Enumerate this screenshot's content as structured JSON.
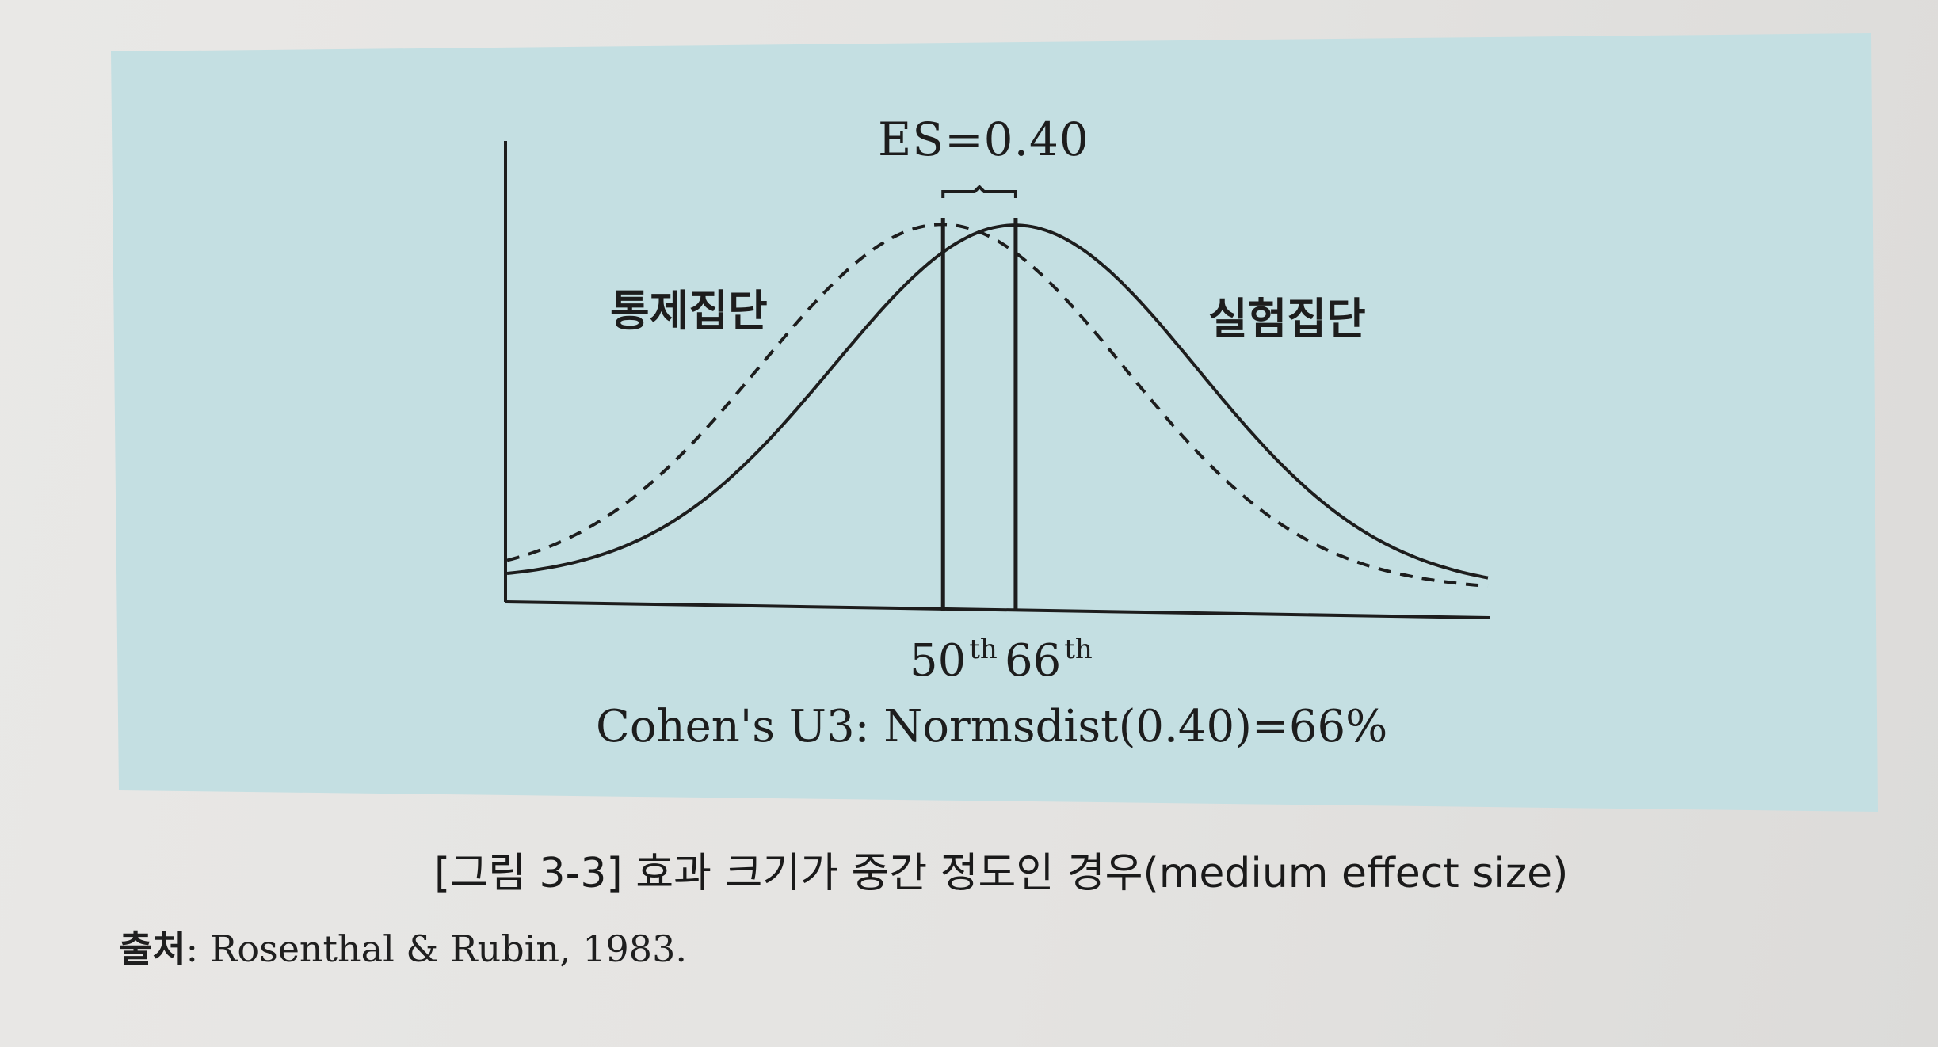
{
  "figure": {
    "es_label": "ES=0.40",
    "control_group_label": "통제집단",
    "treatment_group_label": "실험집단",
    "percentile_50": "50",
    "percentile_66": "66",
    "percentile_suffix": "th",
    "formula": "Cohen's U3: Normsdist(0.40)=66%"
  },
  "caption": "[그림 3-3] 효과 크기가 중간 정도인 경우(medium effect size)",
  "source": {
    "head": "출처",
    "text": ": Rosenthal & Rubin, 1983."
  },
  "colors": {
    "panel_background": "#c4dfe2",
    "page_background": "#e7e6e4",
    "ink": "#1d1d1d"
  },
  "chart_data": {
    "type": "line",
    "series": [
      {
        "name": "통제집단",
        "style": "dashed",
        "mean": 0.0,
        "sd": 1.0
      },
      {
        "name": "실험집단",
        "style": "solid",
        "mean": 0.4,
        "sd": 1.0
      }
    ],
    "markers": [
      {
        "label": "50th",
        "x": 0.0
      },
      {
        "label": "66th",
        "x": 0.4
      }
    ],
    "effect_size": 0.4,
    "xlim": [
      -2.4,
      3.0
    ]
  }
}
